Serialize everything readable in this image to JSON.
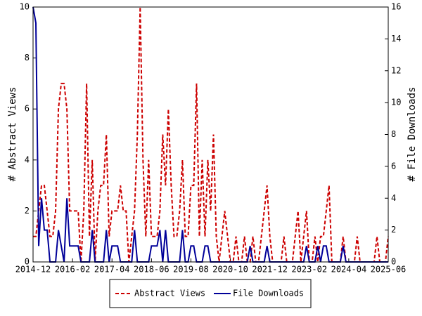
{
  "chart_data": {
    "type": "line",
    "y_label": "# Abstract Views",
    "y2_label": "# File Downloads",
    "categories": [
      "2014-12",
      null,
      null,
      null,
      null,
      null,
      null,
      null,
      null,
      null,
      null,
      null,
      null,
      null,
      "2016-02",
      null,
      null,
      null,
      null,
      null,
      null,
      null,
      null,
      null,
      null,
      null,
      null,
      null,
      "2017-04",
      null,
      null,
      null,
      null,
      null,
      null,
      null,
      null,
      null,
      null,
      null,
      null,
      null,
      "2018-06",
      null,
      null,
      null,
      null,
      null,
      null,
      null,
      null,
      null,
      null,
      null,
      null,
      null,
      "2019-08",
      null,
      null,
      null,
      null,
      null,
      null,
      null,
      null,
      null,
      null,
      null,
      null,
      null,
      "2020-10",
      null,
      null,
      null,
      null,
      null,
      null,
      null,
      null,
      null,
      null,
      null,
      null,
      null,
      "2021-12",
      null,
      null,
      null,
      null,
      null,
      null,
      null,
      null,
      null,
      null,
      null,
      null,
      null,
      "2023-02",
      null,
      null,
      null,
      null,
      null,
      null,
      null,
      null,
      null,
      null,
      null,
      null,
      null,
      "2024-04",
      null,
      null,
      null,
      null,
      null,
      null,
      null,
      null,
      null,
      null,
      null,
      null,
      null,
      "2025-06"
    ],
    "series": [
      {
        "name": "Abstract Views",
        "color": "#cc0000",
        "dashed": true,
        "axis": "y",
        "values": [
          1,
          1,
          2,
          3,
          3,
          2,
          1,
          1,
          2,
          6,
          7,
          7,
          6,
          2,
          2,
          2,
          2,
          0,
          2,
          7,
          1,
          4,
          0,
          2,
          3,
          3,
          5,
          1,
          2,
          2,
          2,
          3,
          2,
          2,
          0,
          1,
          2,
          5,
          10,
          4,
          1,
          4,
          1,
          1,
          1,
          2,
          5,
          3,
          6,
          3,
          1,
          1,
          2,
          4,
          1,
          1,
          3,
          3,
          7,
          1,
          4,
          1,
          4,
          2,
          5,
          1,
          0,
          1,
          2,
          1,
          0,
          0,
          1,
          0,
          0,
          1,
          0,
          0,
          1,
          0,
          0,
          1,
          2,
          3,
          1,
          0,
          0,
          0,
          0,
          1,
          0,
          0,
          0,
          1,
          2,
          0,
          1,
          2,
          0,
          0,
          1,
          0,
          1,
          1,
          2,
          3,
          0,
          0,
          0,
          0,
          1,
          0,
          0,
          0,
          0,
          1,
          0,
          0,
          0,
          0,
          0,
          0,
          1,
          0,
          0,
          0,
          1
        ]
      },
      {
        "name": "File Downloads",
        "color": "#000099",
        "dashed": false,
        "axis": "y2",
        "values": [
          16,
          15,
          1,
          4,
          2,
          2,
          0,
          0,
          0,
          2,
          1,
          0,
          4,
          1,
          1,
          1,
          1,
          0,
          0,
          0,
          0,
          2,
          0,
          0,
          0,
          0,
          2,
          0,
          1,
          1,
          1,
          0,
          0,
          0,
          0,
          0,
          2,
          0,
          0,
          0,
          0,
          0,
          1,
          1,
          1,
          2,
          0,
          2,
          0,
          0,
          0,
          0,
          0,
          2,
          0,
          0,
          1,
          1,
          0,
          0,
          0,
          1,
          1,
          0,
          0,
          0,
          0,
          0,
          0,
          0,
          0,
          0,
          0,
          0,
          0,
          0,
          0,
          1,
          0,
          0,
          0,
          0,
          0,
          1,
          0,
          0,
          0,
          0,
          0,
          0,
          0,
          0,
          0,
          0,
          0,
          0,
          0,
          1,
          0,
          0,
          0,
          1,
          0,
          1,
          1,
          0,
          0,
          0,
          0,
          0,
          1,
          0,
          0,
          0,
          0,
          0,
          0,
          0,
          0,
          0,
          0,
          0,
          0,
          0,
          0,
          0,
          0
        ]
      }
    ],
    "ylim": [
      0,
      10
    ],
    "yticks": [
      0,
      2,
      4,
      6,
      8,
      10
    ],
    "y2lim": [
      0,
      16
    ],
    "y2ticks": [
      0,
      2,
      4,
      6,
      8,
      10,
      12,
      14,
      16
    ],
    "legend": "bottom"
  }
}
